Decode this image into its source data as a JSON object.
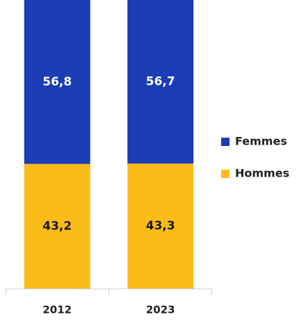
{
  "chart_data": {
    "type": "stacked_bar",
    "categories": [
      "2012",
      "2023"
    ],
    "series": [
      {
        "name": "Hommes",
        "color": "#fbbc1a",
        "values": [
          43.2,
          43.3
        ],
        "value_labels": [
          "43,2",
          "43,3"
        ]
      },
      {
        "name": "Femmes",
        "color": "#1b3db5",
        "values": [
          56.8,
          56.7
        ],
        "value_labels": [
          "56,8",
          "56,7"
        ]
      }
    ],
    "ylim": [
      0,
      100
    ],
    "legend": "right"
  }
}
